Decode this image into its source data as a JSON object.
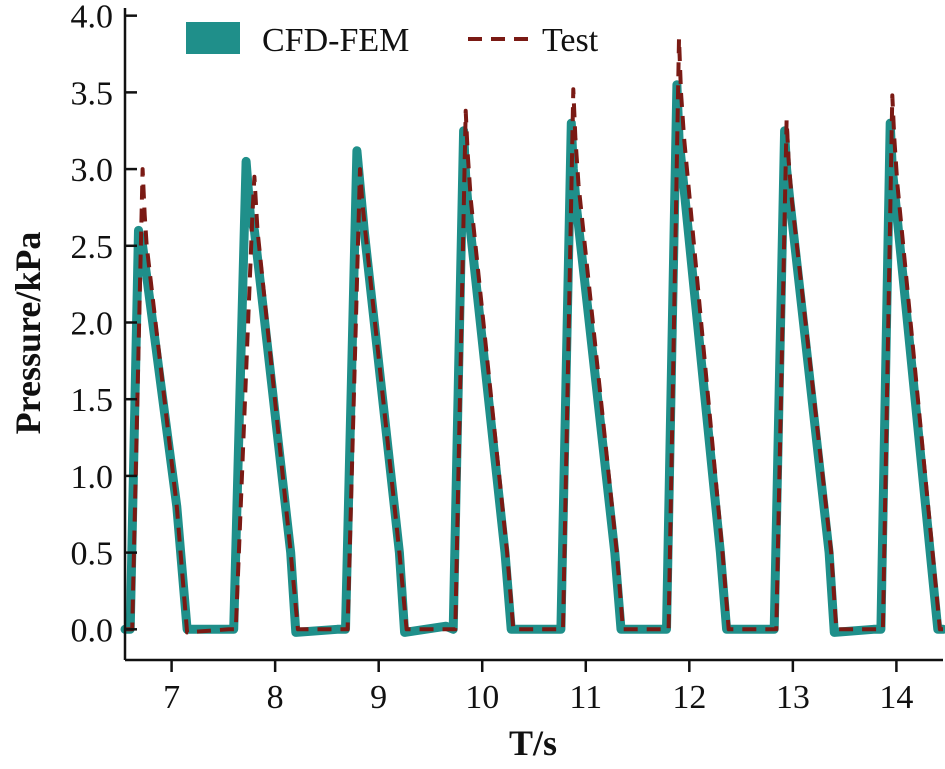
{
  "colors": {
    "cfd": "#1f8f8a",
    "test": "#7a1a14",
    "axis": "#111111"
  },
  "chart_data": {
    "type": "line",
    "title": "",
    "xlabel": "T/s",
    "ylabel": "Pressure/kPa",
    "xlim": [
      6.55,
      14.45
    ],
    "ylim": [
      -0.2,
      4.05
    ],
    "xticks": [
      7,
      8,
      9,
      10,
      11,
      12,
      13,
      14
    ],
    "xtick_labels": [
      "7",
      "8",
      "9",
      "10",
      "11",
      "12",
      "13",
      "14"
    ],
    "yticks": [
      0.0,
      0.5,
      1.0,
      1.5,
      2.0,
      2.5,
      3.0,
      3.5,
      4.0
    ],
    "ytick_labels": [
      "0.0",
      "0.5",
      "1.0",
      "1.5",
      "2.0",
      "2.5",
      "3.0",
      "3.5",
      "4.0"
    ],
    "legend": {
      "placement": "top-left",
      "entries": [
        "CFD-FEM",
        "Test"
      ]
    },
    "series": [
      {
        "name": "CFD-FEM",
        "style": "solid",
        "x": [
          6.55,
          6.6,
          6.68,
          6.72,
          6.76,
          7.05,
          7.15,
          7.55,
          7.6,
          7.72,
          7.76,
          7.8,
          8.15,
          8.2,
          8.6,
          8.68,
          8.79,
          8.82,
          8.86,
          9.2,
          9.25,
          9.65,
          9.72,
          9.82,
          9.84,
          9.87,
          10.22,
          10.28,
          10.68,
          10.76,
          10.86,
          10.88,
          10.91,
          11.28,
          11.34,
          11.68,
          11.78,
          11.88,
          11.9,
          11.93,
          12.3,
          12.36,
          12.75,
          12.82,
          12.92,
          12.94,
          12.97,
          13.35,
          13.4,
          13.78,
          13.85,
          13.94,
          13.96,
          13.99,
          14.4,
          14.45
        ],
        "y": [
          0.0,
          0.0,
          2.6,
          2.5,
          2.3,
          0.8,
          0.0,
          0.0,
          0.0,
          3.05,
          2.7,
          2.6,
          0.5,
          -0.02,
          0.0,
          0.0,
          3.12,
          2.9,
          2.6,
          0.5,
          -0.02,
          0.02,
          0.0,
          3.25,
          2.95,
          2.7,
          0.5,
          0.0,
          0.0,
          0.0,
          3.3,
          3.0,
          2.75,
          0.5,
          0.0,
          0.0,
          0.0,
          3.55,
          3.2,
          3.0,
          0.5,
          0.0,
          0.0,
          0.0,
          3.25,
          3.0,
          2.8,
          0.5,
          -0.02,
          0.0,
          0.0,
          3.3,
          3.0,
          2.8,
          0.0,
          0.0
        ]
      },
      {
        "name": "Test",
        "style": "dashed",
        "x": [
          6.55,
          6.62,
          6.72,
          6.74,
          6.76,
          7.05,
          7.15,
          7.55,
          7.62,
          7.78,
          7.8,
          7.83,
          8.15,
          8.22,
          8.62,
          8.7,
          8.82,
          8.84,
          8.87,
          9.2,
          9.27,
          9.67,
          9.74,
          9.84,
          9.86,
          9.89,
          10.24,
          10.3,
          10.7,
          10.78,
          10.88,
          10.9,
          10.93,
          11.3,
          11.36,
          11.7,
          11.8,
          11.9,
          11.92,
          11.95,
          12.32,
          12.38,
          12.77,
          12.84,
          12.94,
          12.96,
          12.99,
          13.37,
          13.42,
          13.8,
          13.87,
          13.96,
          13.98,
          14.01,
          14.42,
          14.45
        ],
        "y": [
          0.0,
          0.0,
          3.0,
          2.7,
          2.5,
          0.8,
          -0.02,
          0.0,
          0.0,
          2.7,
          2.95,
          2.6,
          0.5,
          0.0,
          0.0,
          0.0,
          3.0,
          2.8,
          2.6,
          0.5,
          0.0,
          0.0,
          0.0,
          3.38,
          3.1,
          2.8,
          0.5,
          0.0,
          0.0,
          0.0,
          3.52,
          3.2,
          2.9,
          0.5,
          0.0,
          0.0,
          0.0,
          3.85,
          3.5,
          3.2,
          0.5,
          0.0,
          0.0,
          0.0,
          3.32,
          3.05,
          2.8,
          0.5,
          0.0,
          0.0,
          0.0,
          3.48,
          3.2,
          2.9,
          0.0,
          0.0
        ]
      }
    ]
  }
}
